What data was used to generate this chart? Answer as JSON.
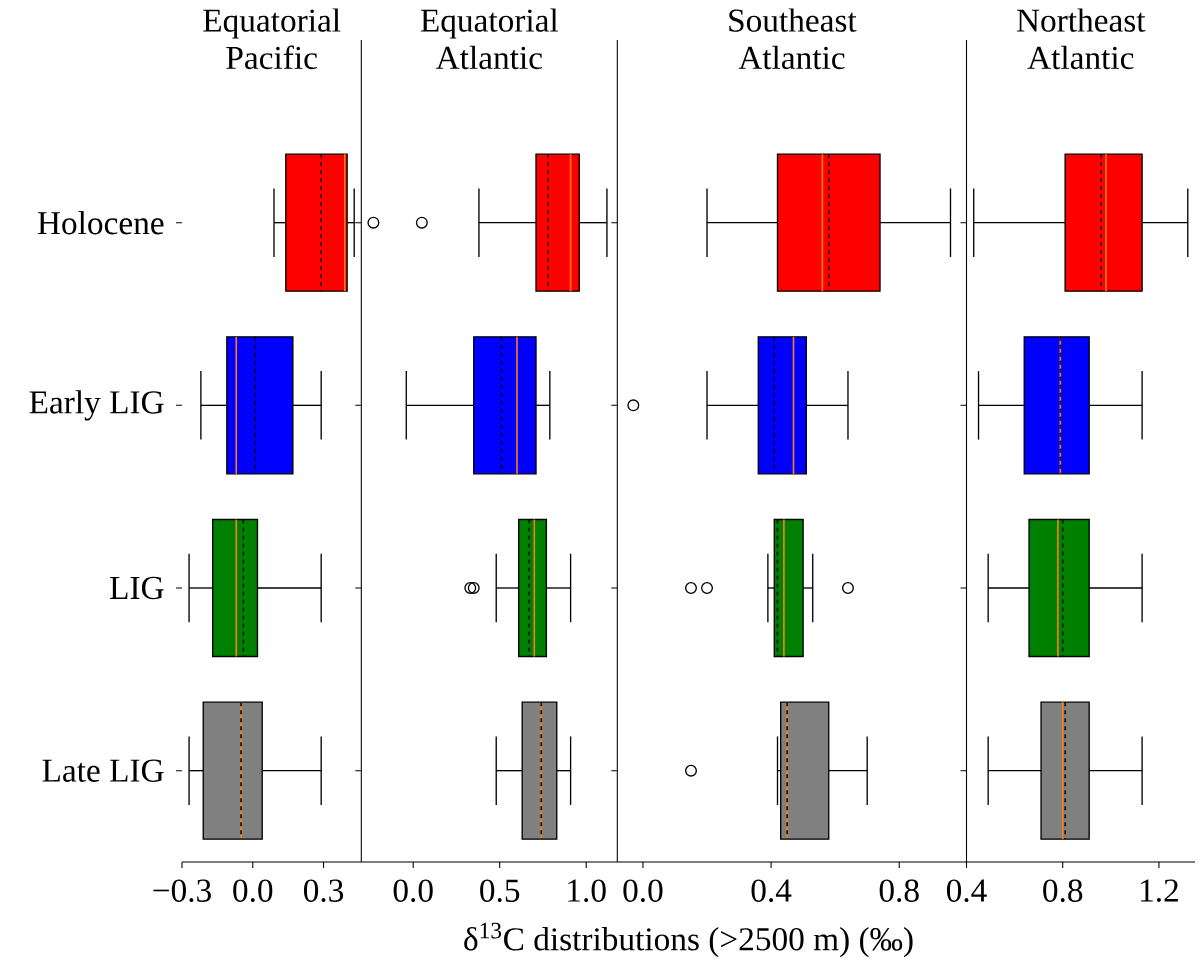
{
  "chart_data": [
    {
      "type": "box",
      "orientation": "horizontal",
      "title": "Equatorial Pacific",
      "xlabel": "δ$^{13}$C distributions (>2500 m) (‰)",
      "categories": [
        "Holocene",
        "Early LIG",
        "LIG",
        "Late LIG"
      ],
      "colors": [
        "#ff0000",
        "#0000ff",
        "#008000",
        "#808080"
      ],
      "xlim": [
        -0.3,
        0.46
      ],
      "xticks": [
        {
          "value": -0.3,
          "label": "−0.3"
        },
        {
          "value": 0.0,
          "label": "0.0"
        },
        {
          "value": 0.3,
          "label": "0.3"
        }
      ],
      "boxes": [
        {
          "low": 0.09,
          "q1": 0.14,
          "median": 0.39,
          "q3": 0.4,
          "high": 0.43,
          "mean": 0.29
        },
        {
          "low": -0.22,
          "q1": -0.11,
          "median": -0.07,
          "q3": 0.17,
          "high": 0.29,
          "mean": 0.01
        },
        {
          "low": -0.27,
          "q1": -0.17,
          "median": -0.07,
          "q3": 0.02,
          "high": 0.29,
          "mean": -0.04
        },
        {
          "low": -0.27,
          "q1": -0.21,
          "median": -0.05,
          "q3": 0.04,
          "high": 0.29,
          "mean": -0.05
        }
      ]
    },
    {
      "type": "box",
      "orientation": "horizontal",
      "title": "Equatorial Atlantic",
      "categories": [
        null,
        null,
        null,
        null
      ],
      "colors": [
        "#ff0000",
        "#0000ff",
        "#008000",
        "#808080"
      ],
      "xlim": [
        -0.3,
        1.18
      ],
      "xticks": [
        {
          "value": 0.0,
          "label": "0.0"
        },
        {
          "value": 0.5,
          "label": "0.5"
        },
        {
          "value": 1.0,
          "label": "1.0"
        }
      ],
      "tick_labels": "x",
      "boxes": [
        {
          "low": 0.38,
          "q1": 0.71,
          "median": 0.91,
          "q3": 0.96,
          "high": 1.12,
          "mean": 0.78,
          "outliers": [
            -0.23,
            0.05
          ]
        },
        {
          "low": -0.04,
          "q1": 0.35,
          "median": 0.6,
          "q3": 0.71,
          "high": 0.79,
          "mean": 0.51
        },
        {
          "low": 0.48,
          "q1": 0.61,
          "median": 0.7,
          "q3": 0.77,
          "high": 0.91,
          "mean": 0.67,
          "outliers": [
            0.33,
            0.35
          ]
        },
        {
          "low": 0.48,
          "q1": 0.63,
          "median": 0.74,
          "q3": 0.83,
          "high": 0.91,
          "mean": 0.74
        }
      ]
    },
    {
      "type": "box",
      "orientation": "horizontal",
      "title": "Southeast Atlantic",
      "categories": [
        null,
        null,
        null,
        null
      ],
      "colors": [
        "#ff0000",
        "#0000ff",
        "#008000",
        "#808080"
      ],
      "xlim": [
        -0.08,
        1.01
      ],
      "xticks": [
        {
          "value": 0.0,
          "label": "0.0"
        },
        {
          "value": 0.4,
          "label": "0.4"
        },
        {
          "value": 0.8,
          "label": "0.8"
        }
      ],
      "tick_labels": "x",
      "boxes": [
        {
          "low": 0.2,
          "q1": 0.42,
          "median": 0.56,
          "q3": 0.74,
          "high": 0.96,
          "mean": 0.58
        },
        {
          "low": 0.2,
          "q1": 0.36,
          "median": 0.47,
          "q3": 0.51,
          "high": 0.64,
          "mean": 0.41,
          "outliers": [
            -0.03
          ]
        },
        {
          "low": 0.39,
          "q1": 0.41,
          "median": 0.44,
          "q3": 0.5,
          "high": 0.53,
          "mean": 0.42,
          "outliers": [
            0.15,
            0.2,
            0.64
          ]
        },
        {
          "low": 0.42,
          "q1": 0.43,
          "median": 0.45,
          "q3": 0.58,
          "high": 0.7,
          "mean": 0.45,
          "outliers": [
            0.15
          ]
        }
      ]
    },
    {
      "type": "box",
      "orientation": "horizontal",
      "title": "Northeast Atlantic",
      "categories": [
        null,
        null,
        null,
        null
      ],
      "colors": [
        "#ff0000",
        "#0000ff",
        "#008000",
        "#808080"
      ],
      "xlim": [
        0.4,
        1.35
      ],
      "xticks": [
        {
          "value": 0.4,
          "label": "0.4"
        },
        {
          "value": 0.8,
          "label": "0.8"
        },
        {
          "value": 1.2,
          "label": "1.2"
        }
      ],
      "tick_labels": "x",
      "boxes": [
        {
          "low": 0.43,
          "q1": 0.81,
          "median": 0.98,
          "q3": 1.13,
          "high": 1.32,
          "mean": 0.96
        },
        {
          "low": 0.45,
          "q1": 0.64,
          "median": 0.79,
          "q3": 0.91,
          "high": 1.13,
          "mean": 0.79
        },
        {
          "low": 0.49,
          "q1": 0.66,
          "median": 0.78,
          "q3": 0.91,
          "high": 1.13,
          "mean": 0.8
        },
        {
          "low": 0.49,
          "q1": 0.71,
          "median": 0.8,
          "q3": 0.91,
          "high": 1.13,
          "mean": 0.81
        }
      ]
    }
  ]
}
